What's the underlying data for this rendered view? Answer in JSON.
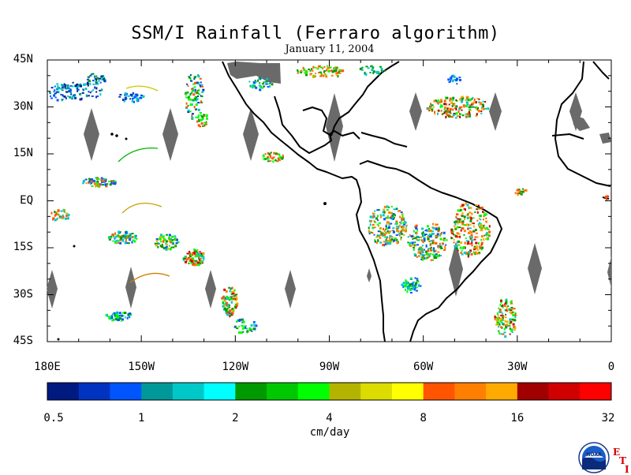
{
  "title": "SSM/I Rainfall (Ferraro algorithm)",
  "date": "January 11, 2004",
  "lat_labels": [
    "45N",
    "30N",
    "15N",
    "EQ",
    "15S",
    "30S",
    "45S"
  ],
  "lat_values": [
    45,
    30,
    15,
    0,
    -15,
    -30,
    -45
  ],
  "lon_labels": [
    "180E",
    "150W",
    "120W",
    "90W",
    "60W",
    "30W",
    "0"
  ],
  "lon_values": [
    -180,
    -150,
    -120,
    -90,
    -60,
    -30,
    0
  ],
  "colorbar": {
    "colors": [
      "#001a80",
      "#0033c0",
      "#0055ff",
      "#009999",
      "#00c8c8",
      "#00ffff",
      "#009900",
      "#00c800",
      "#00ff00",
      "#b4b400",
      "#dcdc00",
      "#ffff00",
      "#ff5500",
      "#ff8000",
      "#ffaa00",
      "#a00000",
      "#d00000",
      "#ff0000"
    ],
    "tick_labels": [
      "0.5",
      "1",
      "2",
      "4",
      "8",
      "16",
      "32"
    ],
    "unit": "cm/day"
  },
  "logo": {
    "text": "NOAA",
    "suffix_letters": [
      "E",
      "T",
      "I"
    ]
  }
}
